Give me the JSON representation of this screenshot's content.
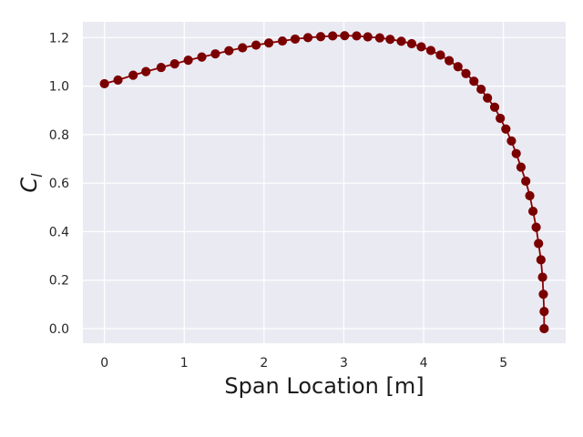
{
  "chart_data": {
    "type": "line",
    "title": "",
    "xlabel": "Span Location [m]",
    "ylabel_main": "C",
    "ylabel_sub": "l",
    "xlim": [
      -0.27,
      5.78
    ],
    "ylim": [
      -0.06,
      1.265
    ],
    "xticks": [
      0,
      1,
      2,
      3,
      4,
      5
    ],
    "yticks": [
      0.0,
      0.2,
      0.4,
      0.6,
      0.8,
      1.0,
      1.2
    ],
    "ytick_labels": [
      "0.0",
      "0.2",
      "0.4",
      "0.6",
      "0.8",
      "1.0",
      "1.2"
    ],
    "grid": true,
    "background": "#eaeaf2",
    "grid_color": "#ffffff",
    "line_color": "#8b0000",
    "marker_color": "#7a0000",
    "series": [
      {
        "x": [
          0.0,
          0.17,
          0.36,
          0.52,
          0.71,
          0.88,
          1.05,
          1.22,
          1.39,
          1.56,
          1.73,
          1.9,
          2.06,
          2.23,
          2.39,
          2.55,
          2.71,
          2.86,
          3.01,
          3.16,
          3.3,
          3.45,
          3.58,
          3.72,
          3.85,
          3.97,
          4.09,
          4.21,
          4.32,
          4.43,
          4.53,
          4.63,
          4.72,
          4.8,
          4.89,
          4.96,
          5.03,
          5.1,
          5.16,
          5.22,
          5.28,
          5.33,
          5.37,
          5.41,
          5.44,
          5.47,
          5.49,
          5.5,
          5.51,
          5.51
        ],
        "y": [
          1.01,
          1.025,
          1.045,
          1.06,
          1.077,
          1.092,
          1.107,
          1.12,
          1.133,
          1.146,
          1.158,
          1.169,
          1.178,
          1.186,
          1.194,
          1.2,
          1.204,
          1.207,
          1.208,
          1.207,
          1.203,
          1.199,
          1.193,
          1.185,
          1.175,
          1.162,
          1.147,
          1.128,
          1.105,
          1.08,
          1.052,
          1.02,
          0.987,
          0.951,
          0.913,
          0.867,
          0.823,
          0.774,
          0.722,
          0.666,
          0.608,
          0.548,
          0.484,
          0.418,
          0.351,
          0.284,
          0.212,
          0.142,
          0.071,
          0.0
        ]
      }
    ]
  }
}
